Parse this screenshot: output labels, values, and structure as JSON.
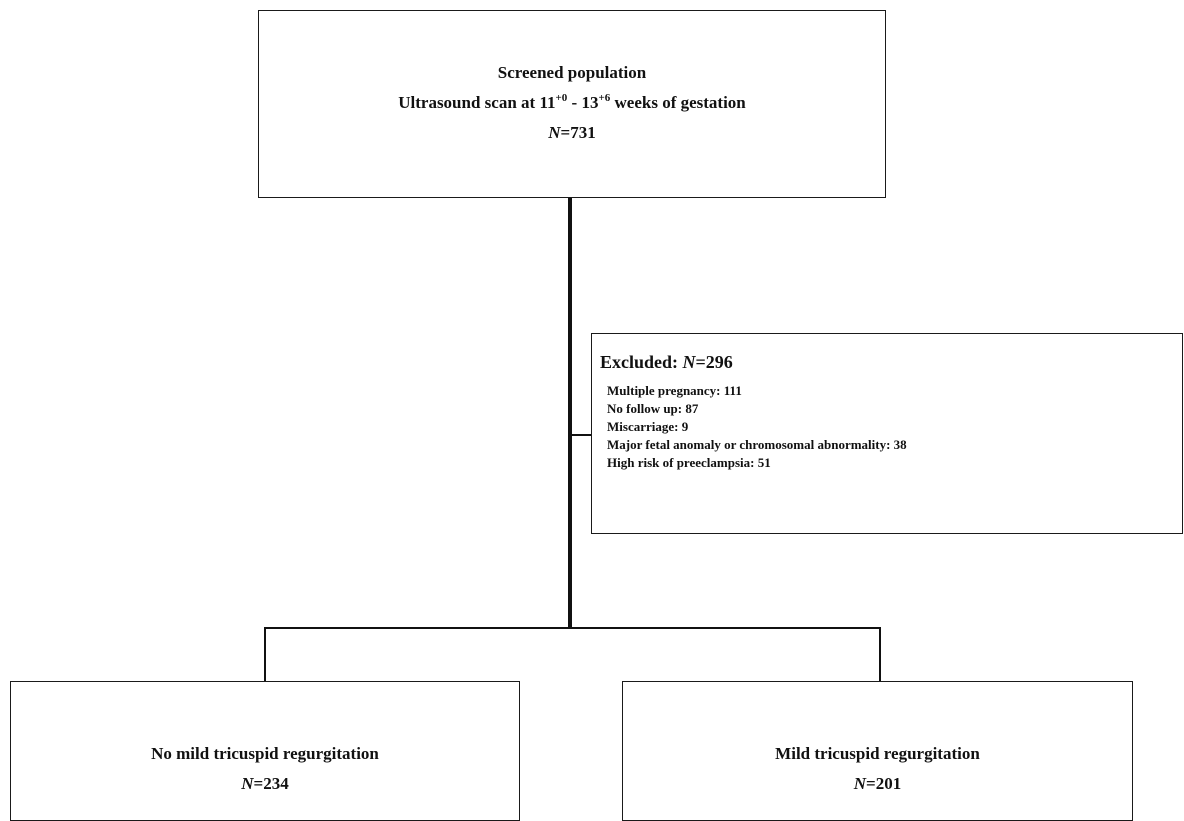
{
  "screened": {
    "title": "Screened population",
    "scan_prefix": "Ultrasound  scan at 11",
    "sup1": "+0",
    "scan_mid": " - 13",
    "sup2": "+6",
    "scan_suffix": " weeks of gestation",
    "n_label": "N",
    "n_value": "=731"
  },
  "excluded": {
    "label": "Excluded:  ",
    "n_label": "N",
    "n_value": "=296",
    "items": [
      "Multiple  pregnancy:  111",
      "No  follow  up:  87",
      "Miscarriage:  9",
      "Major  fetal anomaly  or  chromosomal  abnormality:  38",
      "High risk of preeclampsia:  51"
    ]
  },
  "groups": [
    {
      "label": "No mild tricuspid  regurgitation",
      "n_label": "N",
      "n_value": "=234"
    },
    {
      "label": "Mild tricuspid  regurgitation",
      "n_label": "N",
      "n_value": "=201"
    }
  ]
}
